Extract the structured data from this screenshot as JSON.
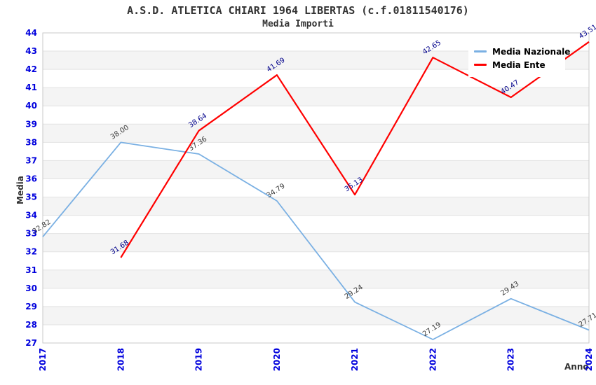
{
  "chart_data": {
    "type": "line",
    "title": "A.S.D. ATLETICA CHIARI 1964 LIBERTAS (c.f.01811540176)",
    "subtitle": "Media Importi",
    "xlabel": "Anno",
    "ylabel": "Media",
    "categories": [
      "2017",
      "2018",
      "2019",
      "2020",
      "2021",
      "2022",
      "2023",
      "2024"
    ],
    "ylim": [
      27,
      44
    ],
    "y_tick_step": 1,
    "grid": "horizontal gridlines with alternating shaded bands",
    "legend_position": "top-right",
    "data_label_decimals": 2,
    "series": [
      {
        "name": "Media Nazionale",
        "color": "#7ab0e3",
        "label_color": "#3c3c3c",
        "values": [
          32.82,
          38.0,
          37.36,
          34.79,
          29.24,
          27.19,
          29.43,
          27.71
        ]
      },
      {
        "name": "Media Ente",
        "color": "#ff0000",
        "label_color": "#00008b",
        "values": [
          null,
          31.68,
          38.64,
          41.69,
          35.13,
          42.65,
          40.47,
          43.51
        ]
      }
    ],
    "colors": {
      "tick_label": "#0000dd",
      "axis_title": "#333333",
      "title_text": "#333333",
      "band_fill": "#f4f4f4",
      "gridline": "#e2e2e2",
      "plot_border": "#c8c8c8",
      "background": "#ffffff"
    }
  }
}
